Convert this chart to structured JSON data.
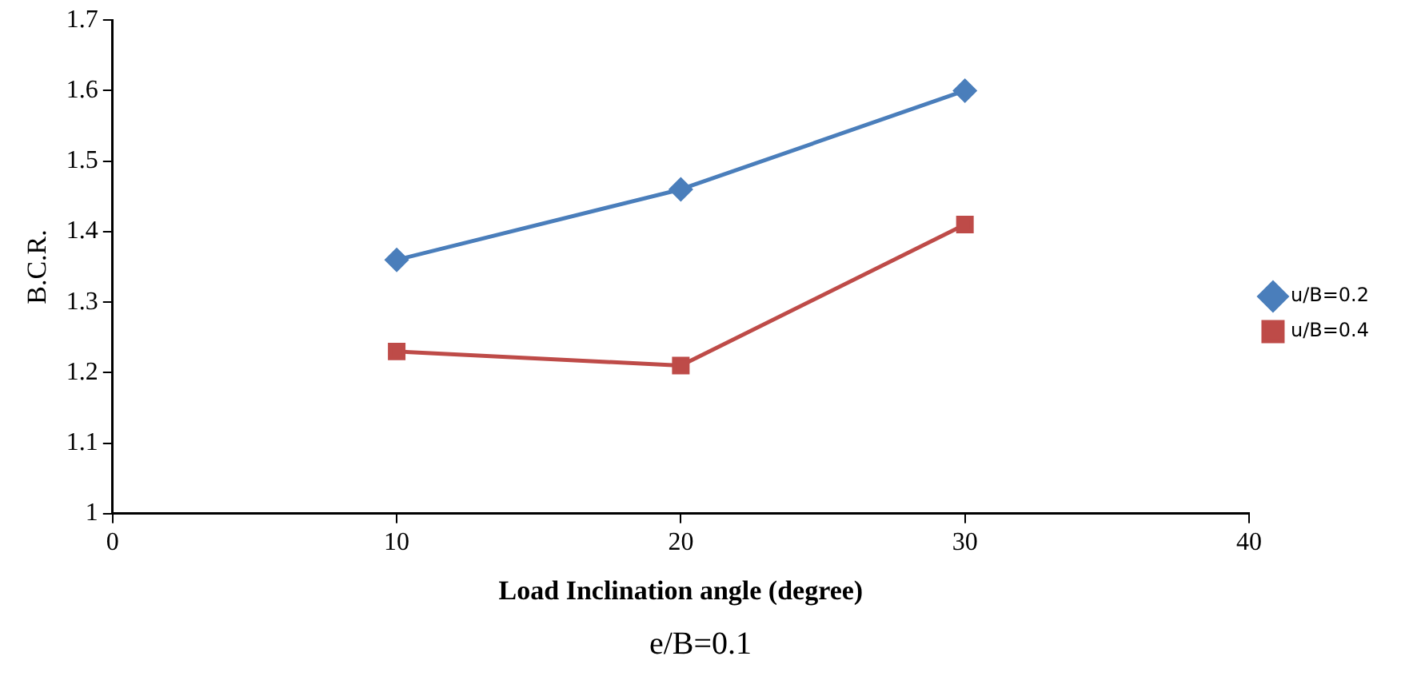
{
  "chart_data": {
    "type": "line",
    "xlabel": "Load Inclination angle (degree)",
    "ylabel": "B.C.R.",
    "x": [
      10,
      20,
      30
    ],
    "series": [
      {
        "name": "u/B=0.2",
        "color": "#4a7ebb",
        "values": [
          1.36,
          1.46,
          1.6
        ],
        "marker": "diamond"
      },
      {
        "name": "u/B=0.4",
        "color": "#be4b48",
        "values": [
          1.23,
          1.21,
          1.41
        ],
        "marker": "square"
      }
    ],
    "xlim": [
      0,
      40
    ],
    "xticks": [
      0,
      10,
      20,
      30,
      40
    ],
    "ylim": [
      1,
      1.7
    ],
    "yticks": [
      1,
      1.1,
      1.2,
      1.3,
      1.4,
      1.5,
      1.6,
      1.7
    ],
    "grid": false,
    "legend": "right",
    "line_style": "solid",
    "annotations": [
      "e/B=0.1"
    ]
  }
}
